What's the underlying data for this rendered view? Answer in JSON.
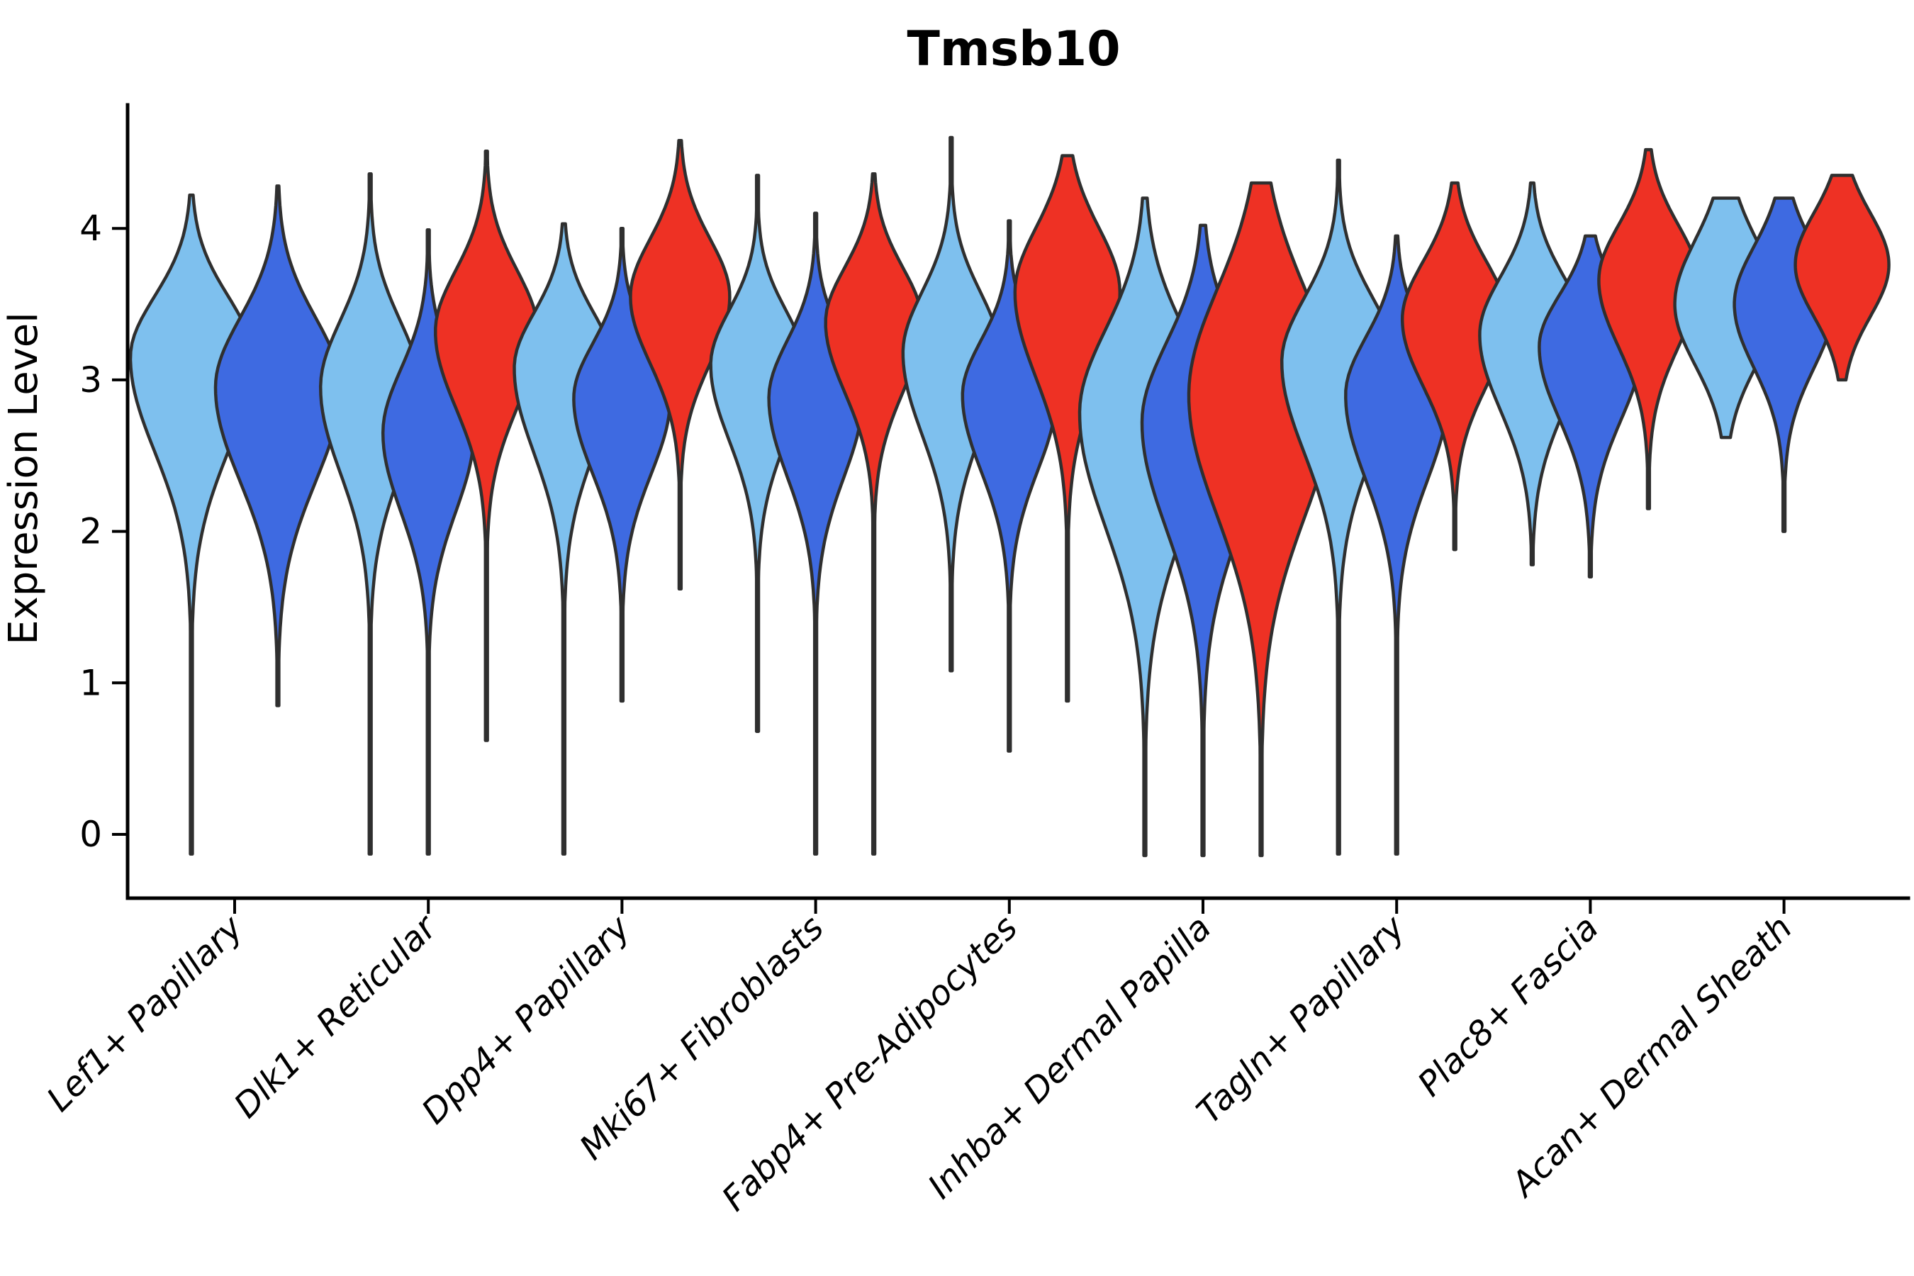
{
  "chart_data": {
    "type": "violin",
    "title": "Tmsb10",
    "ylabel": "Expression Level",
    "xlabel": "",
    "ylim": [
      -0.2,
      4.75
    ],
    "yticks": [
      0,
      1,
      2,
      3,
      4
    ],
    "grid": false,
    "legend": "none",
    "categories": [
      "Lef1+ Papillary",
      "Dlk1+ Reticular",
      "Dpp4+ Papillary",
      "Mki67+ Fibroblasts",
      "Fabp4+ Pre-Adipocytes",
      "Inhba+ Dermal Papilla",
      "Tagln+ Papillary",
      "Plac8+ Fascia",
      "Acan+ Dermal Sheath"
    ],
    "split_colors": {
      "skyblue": "#7EC0EE",
      "royalblue": "#3E6AE1",
      "red": "#EE3124"
    },
    "outline_color": "#2f2f2f",
    "axis_color": "#000000",
    "violins": [
      {
        "category": "Lef1+ Papillary",
        "cat_index": 0,
        "split": "skyblue",
        "color": "#7EC0EE",
        "dx": -61,
        "halfwidth": 86,
        "peak": 3.15,
        "sigma_hi": 0.4,
        "sigma_lo": 0.62,
        "min": -0.13,
        "max": 4.22
      },
      {
        "category": "Lef1+ Papillary",
        "cat_index": 0,
        "split": "royalblue",
        "color": "#3E6AE1",
        "dx": 61,
        "halfwidth": 88,
        "peak": 2.95,
        "sigma_hi": 0.46,
        "sigma_lo": 0.62,
        "min": 0.85,
        "max": 4.28
      },
      {
        "category": "Dlk1+ Reticular",
        "cat_index": 1,
        "split": "skyblue",
        "color": "#7EC0EE",
        "dx": -82,
        "halfwidth": 70,
        "peak": 2.95,
        "sigma_hi": 0.44,
        "sigma_lo": 0.56,
        "min": -0.13,
        "max": 4.36
      },
      {
        "category": "Dlk1+ Reticular",
        "cat_index": 1,
        "split": "royalblue",
        "color": "#3E6AE1",
        "dx": 0,
        "halfwidth": 64,
        "peak": 2.65,
        "sigma_hi": 0.42,
        "sigma_lo": 0.52,
        "min": -0.13,
        "max": 3.99
      },
      {
        "category": "Dlk1+ Reticular",
        "cat_index": 1,
        "split": "red",
        "color": "#EE3124",
        "dx": 82,
        "halfwidth": 72,
        "peak": 3.32,
        "sigma_hi": 0.4,
        "sigma_lo": 0.5,
        "min": 0.62,
        "max": 4.51
      },
      {
        "category": "Dpp4+ Papillary",
        "cat_index": 2,
        "split": "skyblue",
        "color": "#7EC0EE",
        "dx": -82,
        "halfwidth": 70,
        "peak": 3.08,
        "sigma_hi": 0.36,
        "sigma_lo": 0.56,
        "min": -0.13,
        "max": 4.03
      },
      {
        "category": "Dpp4+ Papillary",
        "cat_index": 2,
        "split": "royalblue",
        "color": "#3E6AE1",
        "dx": 0,
        "halfwidth": 68,
        "peak": 2.88,
        "sigma_hi": 0.36,
        "sigma_lo": 0.5,
        "min": 0.88,
        "max": 4.0
      },
      {
        "category": "Dpp4+ Papillary",
        "cat_index": 2,
        "split": "red",
        "color": "#EE3124",
        "dx": 82,
        "halfwidth": 70,
        "peak": 3.55,
        "sigma_hi": 0.38,
        "sigma_lo": 0.44,
        "min": 1.62,
        "max": 4.58
      },
      {
        "category": "Mki67+ Fibroblasts",
        "cat_index": 3,
        "split": "skyblue",
        "color": "#7EC0EE",
        "dx": -82,
        "halfwidth": 66,
        "peak": 3.1,
        "sigma_hi": 0.36,
        "sigma_lo": 0.5,
        "min": 0.68,
        "max": 4.35
      },
      {
        "category": "Mki67+ Fibroblasts",
        "cat_index": 3,
        "split": "royalblue",
        "color": "#3E6AE1",
        "dx": 0,
        "halfwidth": 66,
        "peak": 2.88,
        "sigma_hi": 0.38,
        "sigma_lo": 0.52,
        "min": -0.13,
        "max": 4.1
      },
      {
        "category": "Mki67+ Fibroblasts",
        "cat_index": 3,
        "split": "red",
        "color": "#EE3124",
        "dx": 82,
        "halfwidth": 68,
        "peak": 3.38,
        "sigma_hi": 0.36,
        "sigma_lo": 0.46,
        "min": -0.13,
        "max": 4.36
      },
      {
        "category": "Fabp4+ Pre-Adipocytes",
        "cat_index": 4,
        "split": "skyblue",
        "color": "#7EC0EE",
        "dx": -82,
        "halfwidth": 68,
        "peak": 3.18,
        "sigma_hi": 0.4,
        "sigma_lo": 0.54,
        "min": 1.08,
        "max": 4.6
      },
      {
        "category": "Fabp4+ Pre-Adipocytes",
        "cat_index": 4,
        "split": "royalblue",
        "color": "#3E6AE1",
        "dx": 0,
        "halfwidth": 66,
        "peak": 2.9,
        "sigma_hi": 0.36,
        "sigma_lo": 0.5,
        "min": 0.55,
        "max": 4.05
      },
      {
        "category": "Fabp4+ Pre-Adipocytes",
        "cat_index": 4,
        "split": "red",
        "color": "#EE3124",
        "dx": 82,
        "halfwidth": 74,
        "peak": 3.58,
        "sigma_hi": 0.42,
        "sigma_lo": 0.56,
        "min": 0.88,
        "max": 4.48
      },
      {
        "category": "Inhba+ Dermal Papilla",
        "cat_index": 5,
        "split": "skyblue",
        "color": "#7EC0EE",
        "dx": -82,
        "halfwidth": 92,
        "peak": 2.78,
        "sigma_hi": 0.55,
        "sigma_lo": 0.75,
        "min": -0.14,
        "max": 4.2
      },
      {
        "category": "Inhba+ Dermal Papilla",
        "cat_index": 5,
        "split": "royalblue",
        "color": "#3E6AE1",
        "dx": 0,
        "halfwidth": 86,
        "peak": 2.72,
        "sigma_hi": 0.52,
        "sigma_lo": 0.7,
        "min": -0.14,
        "max": 4.02
      },
      {
        "category": "Inhba+ Dermal Papilla",
        "cat_index": 5,
        "split": "red",
        "color": "#EE3124",
        "dx": 82,
        "halfwidth": 102,
        "peak": 2.9,
        "sigma_hi": 0.7,
        "sigma_lo": 0.8,
        "min": -0.14,
        "max": 4.3
      },
      {
        "category": "Tagln+ Papillary",
        "cat_index": 6,
        "split": "skyblue",
        "color": "#7EC0EE",
        "dx": -82,
        "halfwidth": 80,
        "peak": 3.12,
        "sigma_hi": 0.42,
        "sigma_lo": 0.6,
        "min": -0.13,
        "max": 4.45
      },
      {
        "category": "Tagln+ Papillary",
        "cat_index": 6,
        "split": "royalblue",
        "color": "#3E6AE1",
        "dx": 0,
        "halfwidth": 72,
        "peak": 2.9,
        "sigma_hi": 0.38,
        "sigma_lo": 0.56,
        "min": -0.13,
        "max": 3.95
      },
      {
        "category": "Tagln+ Papillary",
        "cat_index": 6,
        "split": "red",
        "color": "#EE3124",
        "dx": 82,
        "halfwidth": 74,
        "peak": 3.4,
        "sigma_hi": 0.38,
        "sigma_lo": 0.44,
        "min": 1.88,
        "max": 4.3
      },
      {
        "category": "Plac8+ Fascia",
        "cat_index": 7,
        "split": "skyblue",
        "color": "#7EC0EE",
        "dx": -82,
        "halfwidth": 74,
        "peak": 3.3,
        "sigma_hi": 0.38,
        "sigma_lo": 0.5,
        "min": 1.78,
        "max": 4.3
      },
      {
        "category": "Plac8+ Fascia",
        "cat_index": 7,
        "split": "royalblue",
        "color": "#3E6AE1",
        "dx": 0,
        "halfwidth": 72,
        "peak": 3.22,
        "sigma_hi": 0.34,
        "sigma_lo": 0.48,
        "min": 1.7,
        "max": 3.95
      },
      {
        "category": "Plac8+ Fascia",
        "cat_index": 7,
        "split": "red",
        "color": "#EE3124",
        "dx": 82,
        "halfwidth": 70,
        "peak": 3.66,
        "sigma_hi": 0.36,
        "sigma_lo": 0.44,
        "min": 2.15,
        "max": 4.52
      },
      {
        "category": "Acan+ Dermal Sheath",
        "cat_index": 8,
        "split": "skyblue",
        "color": "#7EC0EE",
        "dx": -82,
        "halfwidth": 72,
        "peak": 3.5,
        "sigma_hi": 0.42,
        "sigma_lo": 0.4,
        "min": 2.62,
        "max": 4.2
      },
      {
        "category": "Acan+ Dermal Sheath",
        "cat_index": 8,
        "split": "royalblue",
        "color": "#3E6AE1",
        "dx": 0,
        "halfwidth": 70,
        "peak": 3.5,
        "sigma_hi": 0.38,
        "sigma_lo": 0.42,
        "min": 2.0,
        "max": 4.2
      },
      {
        "category": "Acan+ Dermal Sheath",
        "cat_index": 8,
        "split": "red",
        "color": "#EE3124",
        "dx": 82,
        "halfwidth": 66,
        "peak": 3.76,
        "sigma_hi": 0.34,
        "sigma_lo": 0.34,
        "min": 3.0,
        "max": 4.35
      }
    ]
  }
}
